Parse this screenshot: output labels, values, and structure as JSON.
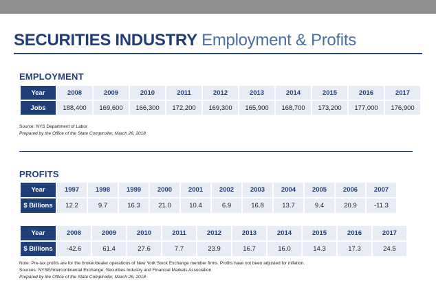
{
  "title": {
    "bold": "SECURITIES INDUSTRY",
    "light": "Employment & Profits"
  },
  "employment": {
    "heading": "EMPLOYMENT",
    "row_labels": [
      "Year",
      "Jobs"
    ],
    "years": [
      "2008",
      "2009",
      "2010",
      "2011",
      "2012",
      "2013",
      "2014",
      "2015",
      "2016",
      "2017"
    ],
    "jobs": [
      "188,400",
      "169,600",
      "166,300",
      "172,200",
      "169,300",
      "165,900",
      "168,700",
      "173,200",
      "177,000",
      "176,900"
    ],
    "source": "Source: NYS Department of Labor",
    "prepared": "Prepared by the Office of the State Comptroller, March 26, 2018"
  },
  "profits": {
    "heading": "PROFITS",
    "row_labels": [
      "Year",
      "$ Billions"
    ],
    "block1": {
      "years": [
        "1997",
        "1998",
        "1999",
        "2000",
        "2001",
        "2002",
        "2003",
        "2004",
        "2005",
        "2006",
        "2007"
      ],
      "values": [
        "12.2",
        "9.7",
        "16.3",
        "21.0",
        "10.4",
        "6.9",
        "16.8",
        "13.7",
        "9.4",
        "20.9",
        "-11.3"
      ]
    },
    "block2": {
      "years": [
        "2008",
        "2009",
        "2010",
        "2011",
        "2012",
        "2013",
        "2014",
        "2015",
        "2016",
        "2017"
      ],
      "values": [
        "-42.6",
        "61.4",
        "27.6",
        "7.7",
        "23.9",
        "16.7",
        "16.0",
        "14.3",
        "17.3",
        "24.5"
      ]
    },
    "note": "Note: Pre-tax profits are for the broker/dealer operations of New York Stock Exchange member firms. Profits have not been adjusted for inflation.",
    "sources": "Sources: NYSE/Intercontinental Exchange; Securities Industry and Financial Markets Association",
    "prepared": "Prepared by the Office of the State Comptroller, March 26, 2018"
  },
  "colors": {
    "navy": "#203f77",
    "cell": "#e8edf5",
    "topbar": "#8f8f8f"
  }
}
